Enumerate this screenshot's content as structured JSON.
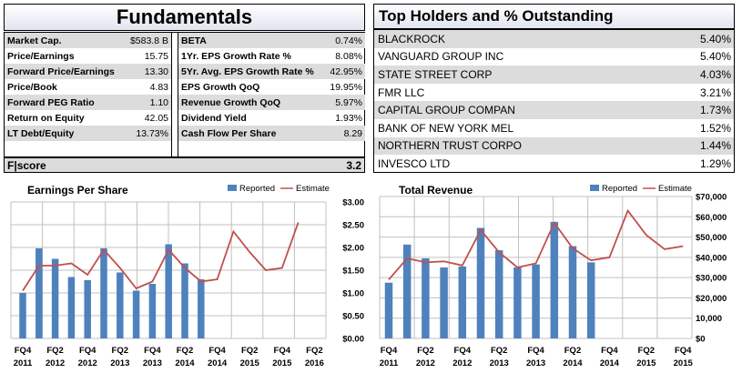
{
  "fundamentals": {
    "title": "Fundamentals",
    "left": [
      {
        "label": "Market Cap.",
        "value": "$583.8 B"
      },
      {
        "label": "Price/Earnings",
        "value": "15.75"
      },
      {
        "label": "Forward Price/Earnings",
        "value": "13.30"
      },
      {
        "label": "Price/Book",
        "value": "4.83"
      },
      {
        "label": "Forward PEG Ratio",
        "value": "1.10"
      },
      {
        "label": "Return on Equity",
        "value": "42.05"
      },
      {
        "label": "LT Debt/Equity",
        "value": "13.73%"
      }
    ],
    "right": [
      {
        "label": "BETA",
        "value": "0.74%"
      },
      {
        "label": "1Yr. EPS Growth Rate %",
        "value": "8.08%"
      },
      {
        "label": "5Yr. Avg. EPS Growth Rate %",
        "value": "42.95%"
      },
      {
        "label": "EPS Growth QoQ",
        "value": "19.95%"
      },
      {
        "label": "Revenue Growth QoQ",
        "value": "5.97%"
      },
      {
        "label": "Dividend Yield",
        "value": "1.93%"
      },
      {
        "label": "Cash Flow Per Share",
        "value": "8.29"
      }
    ],
    "score_label": "F|score",
    "score_value": "3.2"
  },
  "holders": {
    "title": "Top Holders and % Outstanding",
    "rows": [
      {
        "name": "BLACKROCK",
        "pct": "5.40%"
      },
      {
        "name": "VANGUARD GROUP INC",
        "pct": "5.40%"
      },
      {
        "name": "STATE STREET CORP",
        "pct": "4.03%"
      },
      {
        "name": "FMR LLC",
        "pct": "3.21%"
      },
      {
        "name": "CAPITAL GROUP COMPAN",
        "pct": "1.73%"
      },
      {
        "name": "BANK OF NEW YORK MEL",
        "pct": "1.52%"
      },
      {
        "name": "NORTHERN TRUST CORPO",
        "pct": "1.44%"
      },
      {
        "name": "INVESCO LTD",
        "pct": "1.29%"
      }
    ]
  },
  "colors": {
    "bar": "#4f81bd",
    "line": "#c0504d",
    "grid": "#c0c0c0"
  },
  "chart_data": [
    {
      "type": "bar",
      "title": "Earnings Per Share",
      "legend": [
        "Reported",
        "Estimate"
      ],
      "legend_position": "top-right",
      "tick_labels": [
        [
          "FQ4",
          "2011"
        ],
        [
          "FQ2",
          "2012"
        ],
        [
          "FQ4",
          "2012"
        ],
        [
          "FQ2",
          "2013"
        ],
        [
          "FQ4",
          "2013"
        ],
        [
          "FQ2",
          "2014"
        ],
        [
          "FQ4",
          "2014"
        ],
        [
          "FQ2",
          "2015"
        ],
        [
          "FQ4",
          "2015"
        ],
        [
          "FQ2",
          "2016"
        ]
      ],
      "y_ticks": [
        "$0.00",
        "$0.50",
        "$1.00",
        "$1.50",
        "$2.00",
        "$2.50",
        "$3.00"
      ],
      "ylim": [
        0,
        3
      ],
      "grid": true,
      "series": [
        {
          "name": "Reported",
          "values": [
            1.0,
            1.98,
            1.75,
            1.35,
            1.28,
            1.98,
            1.45,
            1.05,
            1.2,
            2.07,
            1.65,
            1.3
          ]
        },
        {
          "name": "Estimate",
          "values": [
            1.05,
            1.6,
            1.6,
            1.65,
            1.4,
            1.95,
            1.55,
            1.1,
            1.25,
            1.95,
            1.55,
            1.25,
            1.3,
            2.35,
            1.9,
            1.5,
            1.55,
            2.55
          ]
        }
      ]
    },
    {
      "type": "bar",
      "title": "Total Revenue",
      "legend": [
        "Reported",
        "Estimate"
      ],
      "legend_position": "top-right",
      "tick_labels": [
        [
          "FQ4",
          "2011"
        ],
        [
          "FQ2",
          "2012"
        ],
        [
          "FQ4",
          "2012"
        ],
        [
          "FQ2",
          "2013"
        ],
        [
          "FQ4",
          "2013"
        ],
        [
          "FQ2",
          "2014"
        ],
        [
          "FQ4",
          "2014"
        ],
        [
          "FQ2",
          "2015"
        ],
        [
          "FQ4",
          "2015"
        ]
      ],
      "y_ticks": [
        "$0",
        "10,000",
        "$20,000",
        "$30,000",
        "$40,000",
        "$50,000",
        "$60,000",
        "$70,000"
      ],
      "ylim": [
        0,
        70000
      ],
      "grid": true,
      "series": [
        {
          "name": "Reported",
          "values": [
            27500,
            46300,
            39500,
            35000,
            35500,
            54500,
            43500,
            35000,
            36500,
            57500,
            45500,
            37500
          ]
        },
        {
          "name": "Estimate",
          "values": [
            29000,
            39500,
            37500,
            38000,
            36000,
            53500,
            42500,
            35000,
            37000,
            57000,
            44500,
            38500,
            40000,
            63000,
            51000,
            44000,
            45500
          ]
        }
      ]
    }
  ]
}
